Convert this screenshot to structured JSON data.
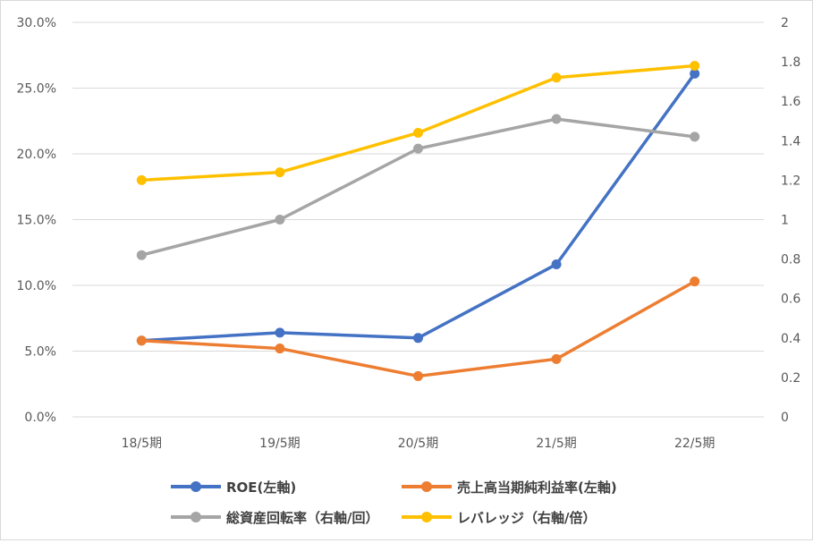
{
  "chart_data": {
    "type": "line",
    "categories": [
      "18/5期",
      "19/5期",
      "20/5期",
      "21/5期",
      "22/5期"
    ],
    "y_left": {
      "ticks": [
        "0.0%",
        "5.0%",
        "10.0%",
        "15.0%",
        "20.0%",
        "25.0%",
        "30.0%"
      ],
      "range": [
        0,
        30
      ]
    },
    "y_right": {
      "ticks": [
        "0",
        "0.2",
        "0.4",
        "0.6",
        "0.8",
        "1",
        "1.2",
        "1.4",
        "1.6",
        "1.8",
        "2"
      ],
      "range": [
        0,
        2
      ]
    },
    "grid": "horizontal",
    "legend_position": "bottom",
    "series": [
      {
        "name": "ROE(左軸)",
        "axis": "left",
        "color": "#4472C4",
        "values": [
          5.8,
          6.4,
          6.0,
          11.6,
          26.1
        ]
      },
      {
        "name": "売上高当期純利益率(左軸)",
        "axis": "left",
        "color": "#ED7D31",
        "values": [
          5.8,
          5.2,
          3.1,
          4.4,
          10.3
        ]
      },
      {
        "name": "総資産回転率（右軸/回）",
        "axis": "right",
        "color": "#A5A5A5",
        "values": [
          0.82,
          1.0,
          1.36,
          1.51,
          1.42
        ]
      },
      {
        "name": "レバレッジ（右軸/倍）",
        "axis": "right",
        "color": "#FFC000",
        "values": [
          1.2,
          1.24,
          1.44,
          1.72,
          1.78
        ]
      }
    ]
  }
}
